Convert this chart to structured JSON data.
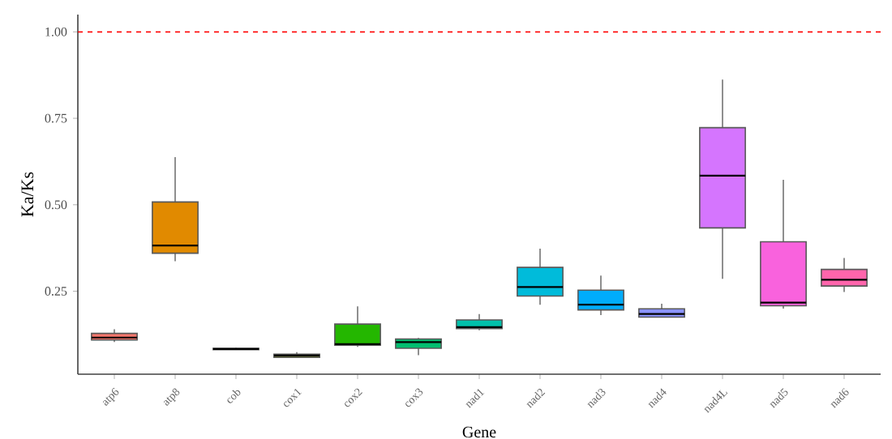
{
  "chart_data": {
    "type": "box",
    "xlabel": "Gene",
    "ylabel": "Ka/Ks",
    "categories": [
      "atp6",
      "atp8",
      "cob",
      "cox1",
      "cox2",
      "cox3",
      "nad1",
      "nad2",
      "nad3",
      "nad4",
      "nad4L",
      "nad5",
      "nad6"
    ],
    "colors": [
      "#F8766D",
      "#E18A00",
      "#BE9C00",
      "#8CAB00",
      "#24B700",
      "#00BE70",
      "#00C1AB",
      "#00BBDA",
      "#00ACFC",
      "#8B93FF",
      "#D575FE",
      "#F962DD",
      "#FF65AC"
    ],
    "boxes": [
      {
        "low": 0.103,
        "q1": 0.109,
        "median": 0.116,
        "q3": 0.128,
        "high": 0.14
      },
      {
        "low": 0.337,
        "q1": 0.36,
        "median": 0.382,
        "q3": 0.508,
        "high": 0.638
      },
      {
        "low": 0.08,
        "q1": 0.081,
        "median": 0.083,
        "q3": 0.085,
        "high": 0.087
      },
      {
        "low": 0.058,
        "q1": 0.059,
        "median": 0.064,
        "q3": 0.068,
        "high": 0.074
      },
      {
        "low": 0.089,
        "q1": 0.094,
        "median": 0.097,
        "q3": 0.155,
        "high": 0.206
      },
      {
        "low": 0.065,
        "q1": 0.085,
        "median": 0.103,
        "q3": 0.112,
        "high": 0.115
      },
      {
        "low": 0.137,
        "q1": 0.142,
        "median": 0.146,
        "q3": 0.167,
        "high": 0.184
      },
      {
        "low": 0.211,
        "q1": 0.236,
        "median": 0.262,
        "q3": 0.319,
        "high": 0.373
      },
      {
        "low": 0.181,
        "q1": 0.196,
        "median": 0.211,
        "q3": 0.253,
        "high": 0.295
      },
      {
        "low": 0.174,
        "q1": 0.175,
        "median": 0.184,
        "q3": 0.199,
        "high": 0.214
      },
      {
        "low": 0.286,
        "q1": 0.433,
        "median": 0.584,
        "q3": 0.723,
        "high": 0.862
      },
      {
        "low": 0.2,
        "q1": 0.208,
        "median": 0.217,
        "q3": 0.393,
        "high": 0.572
      },
      {
        "low": 0.248,
        "q1": 0.265,
        "median": 0.283,
        "q3": 0.313,
        "high": 0.346
      }
    ],
    "ylim": [
      0.01,
      1.05
    ],
    "yticks": [
      0.25,
      {
        "value": 0.5,
        "label": "0.50"
      },
      0.75,
      {
        "value": 1,
        "label": "1.00"
      }
    ],
    "ref_lines": [
      {
        "axis": "y",
        "value": 1,
        "color": "#FF0000",
        "line_style": "dashed"
      }
    ]
  }
}
